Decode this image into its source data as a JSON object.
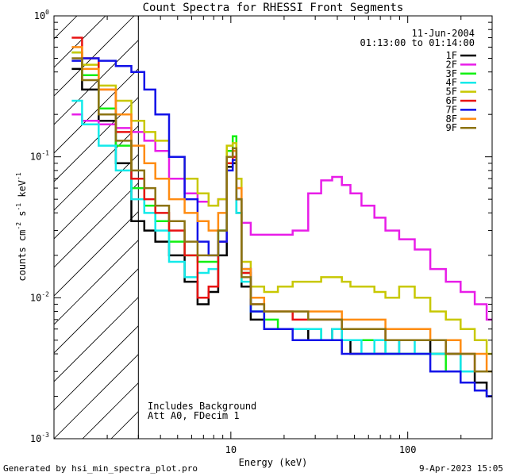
{
  "chart_data": {
    "type": "line",
    "title": "Count Spectra for RHESSI Front Segments",
    "xlabel": "Energy (keV)",
    "ylabel": "counts cm⁻² s⁻¹ keV⁻¹",
    "ylabel_parts": [
      "counts cm",
      "-2",
      " s",
      "-1",
      " keV",
      "-1"
    ],
    "xscale": "log",
    "yscale": "log",
    "xlim": [
      1,
      300
    ],
    "ylim": [
      0.001,
      1.0
    ],
    "x_ticks": [
      {
        "value": 10,
        "label": "10"
      },
      {
        "value": 100,
        "label": "100"
      }
    ],
    "y_ticks": [
      {
        "value": 0.001,
        "base": "10",
        "exp": "-3"
      },
      {
        "value": 0.01,
        "base": "10",
        "exp": "-2"
      },
      {
        "value": 0.1,
        "base": "10",
        "exp": "-1"
      },
      {
        "value": 1.0,
        "base": "10",
        "exp": "0"
      }
    ],
    "date": "11-Jun-2004",
    "time_range": "01:13:00 to 01:14:00",
    "annotations": [
      "Includes Background",
      "Att A0, FDecim 1"
    ],
    "shaded_region": {
      "x_min": 1,
      "x_max": 3,
      "style": "diagonal hatch"
    },
    "legend_position": "top-right",
    "x": [
      1.3,
      1.6,
      2.0,
      2.5,
      3.0,
      3.5,
      4.0,
      5.0,
      6.0,
      7.0,
      8.0,
      9.0,
      10.0,
      10.5,
      11.0,
      12.0,
      14.0,
      17.0,
      20.0,
      25.0,
      30.0,
      35.0,
      40.0,
      45.0,
      50.0,
      60.0,
      70.0,
      80.0,
      100.0,
      120.0,
      150.0,
      180.0,
      220.0,
      260.0,
      300.0
    ],
    "series": [
      {
        "name": "1F",
        "color": "#000000",
        "values": [
          0.42,
          0.3,
          0.18,
          0.09,
          0.035,
          0.03,
          0.025,
          0.02,
          0.013,
          0.009,
          0.011,
          0.02,
          0.085,
          0.09,
          0.04,
          0.012,
          0.007,
          0.006,
          0.006,
          0.006,
          0.005,
          0.005,
          0.006,
          0.005,
          0.004,
          0.004,
          0.004,
          0.004,
          0.005,
          0.005,
          0.004,
          0.004,
          0.003,
          0.0025,
          0.002
        ]
      },
      {
        "name": "2F",
        "color": "#e81de8",
        "values": [
          0.2,
          0.18,
          0.17,
          0.16,
          0.15,
          0.13,
          0.11,
          0.07,
          0.055,
          0.048,
          0.045,
          0.05,
          0.1,
          0.11,
          0.06,
          0.034,
          0.028,
          0.028,
          0.028,
          0.03,
          0.055,
          0.068,
          0.072,
          0.063,
          0.055,
          0.045,
          0.037,
          0.03,
          0.026,
          0.022,
          0.016,
          0.013,
          0.011,
          0.009,
          0.007
        ]
      },
      {
        "name": "3F",
        "color": "#12f012",
        "values": [
          0.55,
          0.38,
          0.22,
          0.12,
          0.06,
          0.045,
          0.035,
          0.025,
          0.02,
          0.018,
          0.018,
          0.03,
          0.11,
          0.14,
          0.05,
          0.015,
          0.008,
          0.007,
          0.006,
          0.006,
          0.006,
          0.005,
          0.005,
          0.005,
          0.005,
          0.005,
          0.005,
          0.004,
          0.004,
          0.004,
          0.004,
          0.003,
          0.003,
          0.003,
          0.003
        ]
      },
      {
        "name": "4F",
        "color": "#12eaea",
        "values": [
          0.25,
          0.17,
          0.12,
          0.08,
          0.05,
          0.04,
          0.03,
          0.018,
          0.014,
          0.015,
          0.016,
          0.03,
          0.1,
          0.11,
          0.04,
          0.013,
          0.008,
          0.006,
          0.006,
          0.006,
          0.006,
          0.005,
          0.006,
          0.005,
          0.005,
          0.004,
          0.005,
          0.004,
          0.005,
          0.004,
          0.004,
          0.004,
          0.003,
          0.003,
          0.003
        ]
      },
      {
        "name": "5F",
        "color": "#c8c800",
        "values": [
          0.55,
          0.45,
          0.32,
          0.25,
          0.18,
          0.15,
          0.13,
          0.1,
          0.07,
          0.055,
          0.045,
          0.05,
          0.12,
          0.125,
          0.07,
          0.018,
          0.012,
          0.011,
          0.012,
          0.013,
          0.013,
          0.014,
          0.014,
          0.013,
          0.012,
          0.012,
          0.011,
          0.01,
          0.012,
          0.01,
          0.008,
          0.007,
          0.006,
          0.005,
          0.004
        ]
      },
      {
        "name": "6F",
        "color": "#e81212",
        "values": [
          0.7,
          0.5,
          0.3,
          0.15,
          0.07,
          0.05,
          0.04,
          0.03,
          0.02,
          0.01,
          0.012,
          0.025,
          0.09,
          0.1,
          0.05,
          0.015,
          0.009,
          0.008,
          0.008,
          0.007,
          0.007,
          0.007,
          0.007,
          0.006,
          0.006,
          0.006,
          0.006,
          0.005,
          0.005,
          0.005,
          0.005,
          0.004,
          0.004,
          0.003,
          0.003
        ]
      },
      {
        "name": "7F",
        "color": "#1212e8",
        "values": [
          0.48,
          0.5,
          0.48,
          0.44,
          0.4,
          0.3,
          0.2,
          0.1,
          0.05,
          0.025,
          0.02,
          0.025,
          0.08,
          0.095,
          0.05,
          0.016,
          0.008,
          0.006,
          0.006,
          0.005,
          0.005,
          0.005,
          0.005,
          0.004,
          0.004,
          0.004,
          0.004,
          0.004,
          0.004,
          0.004,
          0.003,
          0.003,
          0.0025,
          0.0022,
          0.002
        ]
      },
      {
        "name": "8F",
        "color": "#ff8c12",
        "values": [
          0.6,
          0.42,
          0.3,
          0.2,
          0.12,
          0.09,
          0.07,
          0.05,
          0.04,
          0.035,
          0.03,
          0.04,
          0.1,
          0.11,
          0.06,
          0.016,
          0.01,
          0.008,
          0.008,
          0.008,
          0.008,
          0.008,
          0.008,
          0.007,
          0.007,
          0.007,
          0.007,
          0.006,
          0.006,
          0.006,
          0.005,
          0.005,
          0.004,
          0.004,
          0.003
        ]
      },
      {
        "name": "9F",
        "color": "#8c7312",
        "values": [
          0.5,
          0.35,
          0.2,
          0.13,
          0.08,
          0.06,
          0.045,
          0.035,
          0.025,
          0.02,
          0.02,
          0.03,
          0.1,
          0.115,
          0.05,
          0.014,
          0.009,
          0.008,
          0.008,
          0.008,
          0.007,
          0.007,
          0.007,
          0.006,
          0.006,
          0.006,
          0.006,
          0.005,
          0.005,
          0.005,
          0.005,
          0.004,
          0.004,
          0.003,
          0.003
        ]
      }
    ]
  },
  "footer": {
    "generated_by": "Generated by hsi_min_spectra_plot.pro",
    "timestamp": "9-Apr-2023 15:05"
  }
}
